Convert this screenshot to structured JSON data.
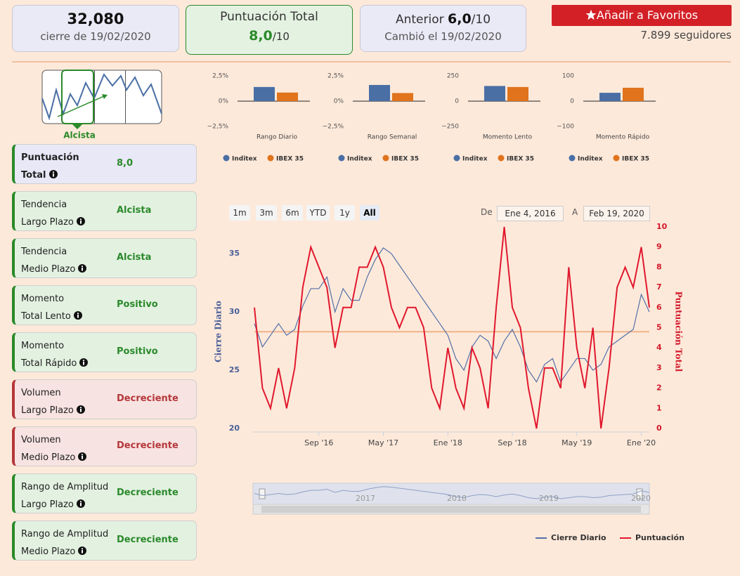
{
  "header": {
    "close": "32,080",
    "close_caption": "cierre de 19/02/2020",
    "score_title": "Puntuación Total",
    "score": "8,0",
    "score_max": "/10",
    "previous_label": "Anterior",
    "previous_score": "6,0",
    "previous_max": "/10",
    "changed": "Cambió el 19/02/2020",
    "favorite_button": "Añadir a Favoritos",
    "followers": "7.899 seguidores"
  },
  "trend_thumbnail": {
    "label": "Alcista"
  },
  "indicators": [
    {
      "label": [
        "Puntuación",
        "Total"
      ],
      "value": "8,0",
      "color": "#2a8a2a",
      "accent": "#2a8a2a",
      "background": "#e9e8f7"
    },
    {
      "label": [
        "Tendencia",
        "Largo Plazo"
      ],
      "value": "Alcista",
      "color": "#2a8a2a",
      "accent": "#2a8a2a",
      "background": "#e3f1e1"
    },
    {
      "label": [
        "Tendencia",
        "Medio Plazo"
      ],
      "value": "Alcista",
      "color": "#2a8a2a",
      "accent": "#2a8a2a",
      "background": "#e3f1e1"
    },
    {
      "label": [
        "Momento",
        "Total Lento"
      ],
      "value": "Positivo",
      "color": "#2a8a2a",
      "accent": "#2a8a2a",
      "background": "#e3f1e1"
    },
    {
      "label": [
        "Momento",
        "Total Rápido"
      ],
      "value": "Positivo",
      "color": "#2a8a2a",
      "accent": "#2a8a2a",
      "background": "#e3f1e1"
    },
    {
      "label": [
        "Volumen",
        "Largo Plazo"
      ],
      "value": "Decreciente",
      "color": "#b5373a",
      "accent": "#b5373a",
      "background": "#f7e3e1"
    },
    {
      "label": [
        "Volumen",
        "Medio Plazo"
      ],
      "value": "Decreciente",
      "color": "#b5373a",
      "accent": "#b5373a",
      "background": "#f7e3e1"
    },
    {
      "label": [
        "Rango de Amplitud",
        "Largo Plazo"
      ],
      "value": "Decreciente",
      "color": "#2a8a2a",
      "accent": "#2a8a2a",
      "background": "#e3f1e1"
    },
    {
      "label": [
        "Rango de Amplitud",
        "Medio Plazo"
      ],
      "value": "Decreciente",
      "color": "#2a8a2a",
      "accent": "#2a8a2a",
      "background": "#e3f1e1"
    }
  ],
  "chart_data": [
    {
      "type": "bar",
      "xlabel": "Rango Diario",
      "ylim": [
        -2.5,
        2.5
      ],
      "yticks": [
        {
          "value": 2.5,
          "label": "2,5%"
        },
        {
          "value": 0,
          "label": "0%"
        },
        {
          "value": -2.5,
          "label": "−2,5%"
        }
      ],
      "series": [
        {
          "name": "Inditex",
          "color": "#4a6fa5",
          "values": [
            1.4
          ]
        },
        {
          "name": "IBEX 35",
          "color": "#e0731c",
          "values": [
            0.85
          ]
        }
      ]
    },
    {
      "type": "bar",
      "xlabel": "Rango Semanal",
      "ylim": [
        -2.5,
        2.5
      ],
      "yticks": [
        {
          "value": 2.5,
          "label": "2,5%"
        },
        {
          "value": 0,
          "label": "0%"
        },
        {
          "value": -2.5,
          "label": "−2,5%"
        }
      ],
      "series": [
        {
          "name": "Inditex",
          "color": "#4a6fa5",
          "values": [
            1.6
          ]
        },
        {
          "name": "IBEX 35",
          "color": "#e0731c",
          "values": [
            0.8
          ]
        }
      ]
    },
    {
      "type": "bar",
      "xlabel": "Momento Lento",
      "ylim": [
        -250,
        250
      ],
      "yticks": [
        250,
        0,
        {
          "value": -250,
          "label": "−250"
        }
      ],
      "series": [
        {
          "name": "Inditex",
          "color": "#4a6fa5",
          "values": [
            150
          ]
        },
        {
          "name": "IBEX 35",
          "color": "#e0731c",
          "values": [
            140
          ]
        }
      ]
    },
    {
      "type": "bar",
      "xlabel": "Momento Rápido",
      "ylim": [
        -100,
        100
      ],
      "yticks": [
        100,
        0,
        {
          "value": -100,
          "label": "−100"
        }
      ],
      "series": [
        {
          "name": "Inditex",
          "color": "#4a6fa5",
          "values": [
            33
          ]
        },
        {
          "name": "IBEX 35",
          "color": "#e0731c",
          "values": [
            53
          ]
        }
      ]
    },
    {
      "type": "line",
      "ylabel": "Cierre Diario",
      "y2label": "Puntuación Total",
      "range_buttons": [
        "1m",
        "3m",
        "6m",
        "YTD",
        "1y",
        "All"
      ],
      "selected_range": 5,
      "from_label": "De",
      "from_date": "Ene 4, 2016",
      "to_label": "A",
      "to_date": "Feb 19, 2020",
      "navigator_labels": [
        "2017",
        "2018",
        "2019",
        "2020"
      ],
      "x": [
        "2016-01",
        "2016-02",
        "2016-03",
        "2016-04",
        "2016-05",
        "2016-06",
        "2016-07",
        "2016-08",
        "2016-09",
        "2016-10",
        "2016-11",
        "2016-12",
        "2017-01",
        "2017-02",
        "2017-03",
        "2017-04",
        "2017-05",
        "2017-06",
        "2017-07",
        "2017-08",
        "2017-09",
        "2017-10",
        "2017-11",
        "2017-12",
        "2018-01",
        "2018-02",
        "2018-03",
        "2018-04",
        "2018-05",
        "2018-06",
        "2018-07",
        "2018-08",
        "2018-09",
        "2018-10",
        "2018-11",
        "2018-12",
        "2019-01",
        "2019-02",
        "2019-03",
        "2019-04",
        "2019-05",
        "2019-06",
        "2019-07",
        "2019-08",
        "2019-09",
        "2019-10",
        "2019-11",
        "2019-12",
        "2020-01",
        "2020-02"
      ],
      "xlim": [
        "2016-01",
        "2020-02"
      ],
      "xticks": [
        {
          "value": "2016-09",
          "label": "Sep '16"
        },
        {
          "value": "2017-05",
          "label": "May '17"
        },
        {
          "value": "2018-01",
          "label": "Ene '18"
        },
        {
          "value": "2018-09",
          "label": "Sep '18"
        },
        {
          "value": "2019-05",
          "label": "May '19"
        },
        {
          "value": "2020-01",
          "label": "Ene '20"
        }
      ],
      "ylim": [
        20,
        37.3
      ],
      "yticks": [
        20,
        25,
        30,
        35
      ],
      "y2lim": [
        0,
        10
      ],
      "y2ticks": [
        0,
        1,
        2,
        3,
        4,
        5,
        6,
        7,
        8,
        9,
        10
      ],
      "reference_line": 28.3,
      "reference_color": "#f0b48a",
      "series": [
        {
          "name": "Cierre Diario",
          "color": "#5470a8",
          "values": [
            29,
            27,
            28,
            29,
            28,
            28.5,
            30.5,
            32,
            32,
            33,
            30,
            32,
            31,
            31,
            33,
            34.5,
            35.5,
            35,
            34,
            33,
            32,
            31,
            30,
            29,
            28,
            26,
            25,
            27,
            28,
            27.5,
            26,
            27.5,
            28.5,
            27,
            25,
            24,
            25.5,
            26,
            24,
            25,
            26,
            26,
            25,
            25.5,
            27,
            27.5,
            28,
            28.5,
            31.5,
            30
          ]
        },
        {
          "name": "Puntuación",
          "color": "#e0182d",
          "axis": "y2",
          "values": [
            6,
            2,
            1,
            3,
            1,
            3,
            7,
            9,
            8,
            7,
            4,
            6,
            6,
            8,
            8,
            9,
            8,
            6,
            5,
            6,
            6,
            5,
            2,
            1,
            4,
            2,
            1,
            4,
            3,
            1,
            6,
            10,
            6,
            5,
            2,
            0,
            3,
            3,
            2,
            8,
            4,
            2,
            5,
            0,
            3,
            7,
            8,
            7,
            9,
            6
          ]
        }
      ]
    }
  ]
}
